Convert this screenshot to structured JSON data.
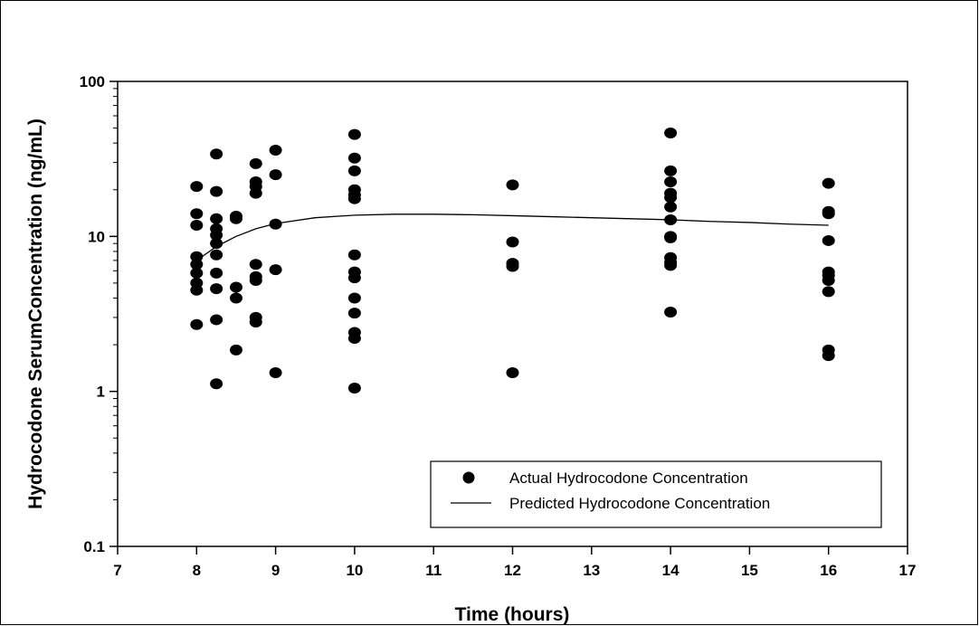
{
  "chart_data": {
    "type": "scatter",
    "xlabel": "Time (hours)",
    "ylabel": "Hydrocodone SerumConcentration (ng/mL)",
    "xlim": [
      7,
      17
    ],
    "ylim": [
      0.1,
      100
    ],
    "yscale": "log",
    "grid": false,
    "legend_position": "bottom-right",
    "x_ticks": [
      7,
      8,
      9,
      10,
      11,
      12,
      13,
      14,
      15,
      16,
      17
    ],
    "y_ticks": [
      0.1,
      1,
      10,
      100
    ],
    "x_tick_labels": [
      "7",
      "8",
      "9",
      "10",
      "11",
      "12",
      "13",
      "14",
      "15",
      "16",
      "17"
    ],
    "y_tick_labels": [
      "0.1",
      "1",
      "10",
      "100"
    ],
    "series": [
      {
        "name": "Actual Hydrocodone Concentration",
        "kind": "scatter",
        "color": "#000000",
        "points": [
          [
            8,
            21
          ],
          [
            8,
            14
          ],
          [
            8,
            11.8
          ],
          [
            8,
            7.4
          ],
          [
            8,
            6.6
          ],
          [
            8,
            5.8
          ],
          [
            8,
            5.0
          ],
          [
            8,
            4.5
          ],
          [
            8,
            2.7
          ],
          [
            8.25,
            34
          ],
          [
            8.25,
            19.5
          ],
          [
            8.25,
            13
          ],
          [
            8.25,
            11.2
          ],
          [
            8.25,
            10.2
          ],
          [
            8.25,
            9.0
          ],
          [
            8.25,
            7.6
          ],
          [
            8.25,
            5.8
          ],
          [
            8.25,
            4.6
          ],
          [
            8.25,
            2.9
          ],
          [
            8.25,
            1.12
          ],
          [
            8.5,
            13.5
          ],
          [
            8.5,
            13
          ],
          [
            8.5,
            4.7
          ],
          [
            8.5,
            4.0
          ],
          [
            8.5,
            1.85
          ],
          [
            8.75,
            29.5
          ],
          [
            8.75,
            22.5
          ],
          [
            8.75,
            21
          ],
          [
            8.75,
            19
          ],
          [
            8.75,
            6.6
          ],
          [
            8.75,
            5.5
          ],
          [
            8.75,
            5.2
          ],
          [
            8.75,
            3.0
          ],
          [
            8.75,
            2.8
          ],
          [
            9,
            36
          ],
          [
            9,
            25
          ],
          [
            9,
            12
          ],
          [
            9,
            6.1
          ],
          [
            9,
            1.32
          ],
          [
            10,
            45.5
          ],
          [
            10,
            32
          ],
          [
            10,
            26.5
          ],
          [
            10,
            20
          ],
          [
            10,
            18.5
          ],
          [
            10,
            17.5
          ],
          [
            10,
            7.6
          ],
          [
            10,
            5.9
          ],
          [
            10,
            5.4
          ],
          [
            10,
            4.0
          ],
          [
            10,
            3.2
          ],
          [
            10,
            2.4
          ],
          [
            10,
            2.2
          ],
          [
            10,
            1.05
          ],
          [
            12,
            21.5
          ],
          [
            12,
            9.2
          ],
          [
            12,
            6.7
          ],
          [
            12,
            6.4
          ],
          [
            12,
            1.32
          ],
          [
            14,
            46.5
          ],
          [
            14,
            26.5
          ],
          [
            14,
            22.5
          ],
          [
            14,
            19
          ],
          [
            14,
            17.8
          ],
          [
            14,
            15.5
          ],
          [
            14,
            12.8
          ],
          [
            14,
            10
          ],
          [
            14,
            9.8
          ],
          [
            14,
            7.3
          ],
          [
            14,
            6.8
          ],
          [
            14,
            6.5
          ],
          [
            14,
            3.25
          ],
          [
            16,
            22
          ],
          [
            16,
            14.5
          ],
          [
            16,
            14
          ],
          [
            16,
            9.4
          ],
          [
            16,
            5.9
          ],
          [
            16,
            5.6
          ],
          [
            16,
            5.2
          ],
          [
            16,
            4.4
          ],
          [
            16,
            1.85
          ],
          [
            16,
            1.7
          ]
        ]
      },
      {
        "name": "Predicted Hydrocodone Concentration",
        "kind": "line",
        "color": "#000000",
        "x": [
          8,
          8.25,
          8.5,
          8.75,
          9,
          9.5,
          10,
          10.5,
          11,
          11.5,
          12,
          12.5,
          13,
          13.5,
          14,
          14.5,
          15,
          15.5,
          16
        ],
        "y": [
          7.0,
          8.6,
          10.0,
          11.2,
          12.1,
          13.2,
          13.7,
          13.9,
          13.9,
          13.8,
          13.6,
          13.4,
          13.2,
          13.0,
          12.8,
          12.5,
          12.3,
          12.0,
          11.8
        ]
      }
    ]
  }
}
